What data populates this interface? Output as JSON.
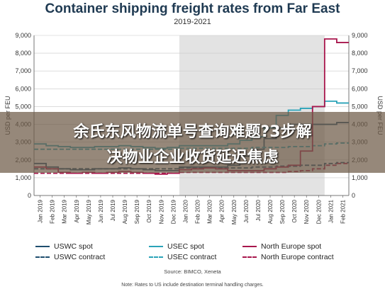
{
  "chart_data": {
    "type": "line",
    "title": "Container shipping freight rates from Far East",
    "subtitle": "2019-2021",
    "ylabel_left": "USD per FEU",
    "ylabel_right": "USD per FEU",
    "ylim": [
      0,
      9000
    ],
    "yticks": [
      "0",
      "1,000",
      "2,000",
      "3,000",
      "4,000",
      "5,000",
      "6,000",
      "7,000",
      "8,000",
      "9,000"
    ],
    "grid": true,
    "highlight_range": [
      "Jan 2020",
      "Dec 2020"
    ],
    "categories": [
      "Jan 2019",
      "Feb 2019",
      "Mar 2019",
      "Apr 2019",
      "May 2019",
      "Jun 2019",
      "Jul 2019",
      "Aug 2019",
      "Sep 2019",
      "Oct 2019",
      "Nov 2019",
      "Dec 2019",
      "Jan 2020",
      "Feb 2020",
      "Mar 2020",
      "Apr 2020",
      "May 2020",
      "Jun 2020",
      "Jul 2020",
      "Aug 2020",
      "Sep 2020",
      "Oct 2020",
      "Nov 2020",
      "Dec 2020",
      "Jan 2021",
      "Feb 2021"
    ],
    "series": [
      {
        "name": "USWC spot",
        "color": "#1f4e6e",
        "dash": "",
        "values": [
          1800,
          1600,
          1500,
          1450,
          1450,
          1500,
          1500,
          1550,
          1500,
          1450,
          1400,
          1400,
          1600,
          1600,
          1600,
          1600,
          1700,
          2200,
          2600,
          3200,
          3800,
          4000,
          4000,
          4000,
          4000,
          4100
        ]
      },
      {
        "name": "USWC contract",
        "color": "#1f4e6e",
        "dash": "6,3",
        "values": [
          1500,
          1500,
          1500,
          1500,
          1500,
          1500,
          1500,
          1500,
          1500,
          1500,
          1500,
          1500,
          1550,
          1550,
          1550,
          1550,
          1550,
          1550,
          1600,
          1600,
          1650,
          1650,
          1700,
          1700,
          1800,
          1850
        ]
      },
      {
        "name": "USEC spot",
        "color": "#2aa3b8",
        "dash": "",
        "values": [
          2900,
          2800,
          2750,
          2700,
          2700,
          2750,
          2750,
          2800,
          2750,
          2700,
          2650,
          2700,
          2800,
          2800,
          2800,
          2800,
          2900,
          3100,
          3300,
          3800,
          4500,
          4800,
          4900,
          5000,
          5300,
          5200
        ]
      },
      {
        "name": "USEC contract",
        "color": "#2aa3b8",
        "dash": "6,3",
        "values": [
          2600,
          2600,
          2600,
          2600,
          2600,
          2600,
          2600,
          2600,
          2600,
          2600,
          2600,
          2600,
          2650,
          2650,
          2650,
          2650,
          2650,
          2650,
          2700,
          2700,
          2700,
          2750,
          2750,
          2800,
          2900,
          2950
        ]
      },
      {
        "name": "North Europe spot",
        "color": "#a8164c",
        "dash": "",
        "values": [
          1600,
          1500,
          1300,
          1250,
          1300,
          1250,
          1300,
          1350,
          1300,
          1250,
          1200,
          1250,
          1450,
          1500,
          1550,
          1500,
          1400,
          1400,
          1400,
          1500,
          1600,
          1700,
          2500,
          5000,
          8800,
          8600
        ]
      },
      {
        "name": "North Europe contract",
        "color": "#a8164c",
        "dash": "6,3",
        "values": [
          1250,
          1250,
          1250,
          1250,
          1250,
          1250,
          1250,
          1250,
          1250,
          1250,
          1250,
          1250,
          1300,
          1300,
          1300,
          1300,
          1300,
          1300,
          1300,
          1300,
          1300,
          1350,
          1400,
          1500,
          1700,
          1800
        ]
      }
    ]
  },
  "legend": [
    {
      "label": "USWC spot",
      "color": "#1f4e6e",
      "dashed": false
    },
    {
      "label": "USEC spot",
      "color": "#2aa3b8",
      "dashed": false
    },
    {
      "label": "North Europe spot",
      "color": "#a8164c",
      "dashed": false
    },
    {
      "label": "USWC contract",
      "color": "#1f4e6e",
      "dashed": true
    },
    {
      "label": "USEC contract",
      "color": "#2aa3b8",
      "dashed": true
    },
    {
      "label": "North Europe contract",
      "color": "#a8164c",
      "dashed": true
    }
  ],
  "source": "Source: BIMCO, Xeneta",
  "note": "Note: Rates to US include destination terminal handling charges.",
  "banner": {
    "line1": "余氏东风物流单号查询难题?3步解",
    "line2": "决物业企业收货延迟焦虑"
  }
}
